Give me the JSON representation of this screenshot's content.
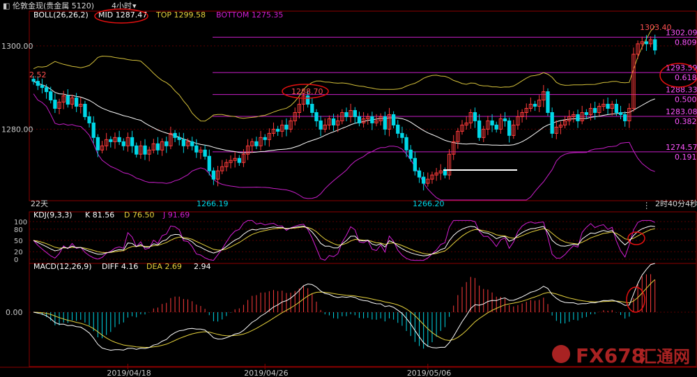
{
  "title_bar": {
    "title": "伦敦金现(贵金属 5120)",
    "period": "4小时",
    "chevron": "▾"
  },
  "colors": {
    "bg": "#000000",
    "frame": "#8b0000",
    "grid": "#5a0000",
    "price_label": "#c8c8c8",
    "up": "#ff3b3b",
    "down": "#00d8e8",
    "boll_mid": "#ffffff",
    "boll_top": "#d4c03a",
    "boll_bottom": "#c81ec8",
    "fib": "#c81ec8",
    "fib_label": "#ff55ff",
    "white_line": "#ffffff",
    "kdj_k": "#ffffff",
    "kdj_d": "#e6d23c",
    "kdj_j": "#d21ed2",
    "macd_diff": "#ffffff",
    "macd_dea": "#e6d23c",
    "circle": "#e81010",
    "watermark": "#c62828"
  },
  "indicators": {
    "boll": {
      "name": "BOLL(26,26,2)",
      "mid": "MID 1287.47",
      "top": "TOP 1299.58",
      "bottom": "BOTTOM 1275.35"
    },
    "kdj": {
      "name": "KDJ(9,3,3)",
      "k": "K 81.56",
      "d": "D 76.50",
      "j": "J 91.69"
    },
    "macd": {
      "name": "MACD(12,26,9)",
      "diff": "DIFF 4.16",
      "dea": "DEA 2.69",
      "macd": "2.94"
    }
  },
  "annotations": {
    "left_value": "2.52",
    "peak_left": "1288.70",
    "peak_right": "1303.40",
    "low_left": "1266.19",
    "low_right": "1266.20",
    "days": "22天",
    "countdown": "2时40分4秒"
  },
  "fib_levels": [
    {
      "price": 1302.09,
      "label": "1302.09",
      "ratio": "0.809"
    },
    {
      "price": 1293.59,
      "label": "1293.59",
      "ratio": "0.618"
    },
    {
      "price": 1288.33,
      "label": "1288.33",
      "ratio": "0.500"
    },
    {
      "price": 1283.08,
      "label": "1283.08",
      "ratio": "0.382"
    },
    {
      "price": 1274.57,
      "label": "1274.57",
      "ratio": "0.191"
    }
  ],
  "price_axis": {
    "ticks": [
      1300.0,
      1280.0
    ],
    "labels": [
      "1300.00",
      "1280.00"
    ]
  },
  "kdj_axis": {
    "ticks": [
      100,
      80,
      50,
      20,
      0
    ],
    "labels": [
      "100",
      "80",
      "50",
      "20",
      "0"
    ]
  },
  "macd_axis": {
    "ticks": [
      0
    ],
    "labels": [
      "0.00"
    ]
  },
  "x_axis": {
    "labels": [
      "2019/04/18",
      "2019/04/26",
      "2019/05/06"
    ],
    "label_index": [
      22,
      54,
      92
    ]
  },
  "watermark": {
    "text": "FX678",
    "cn": "汇通网"
  },
  "chart_data": {
    "type": "candlestick",
    "symbol": "伦敦金现",
    "interval": "4小时",
    "price_ylim": [
      1263,
      1306
    ],
    "closes": [
      1291.5,
      1290.5,
      1290,
      1289,
      1287,
      1285,
      1286.5,
      1288,
      1286,
      1287.5,
      1285.5,
      1286,
      1283,
      1281.5,
      1278,
      1275,
      1276,
      1277.5,
      1277,
      1278,
      1277,
      1276,
      1278,
      1276,
      1274,
      1276,
      1274,
      1275,
      1276.5,
      1275,
      1277,
      1276,
      1279,
      1278,
      1277.5,
      1276,
      1277,
      1276,
      1274.5,
      1275,
      1273.5,
      1270,
      1268,
      1270,
      1271,
      1272,
      1272.5,
      1273,
      1272,
      1274,
      1276,
      1277,
      1276,
      1278,
      1277.5,
      1279,
      1280,
      1279.5,
      1281,
      1280,
      1282,
      1284,
      1286,
      1288,
      1286,
      1284,
      1282,
      1280,
      1281,
      1282.5,
      1281,
      1282,
      1284,
      1283,
      1284.5,
      1283,
      1281.5,
      1282.5,
      1283,
      1281.5,
      1282,
      1283,
      1280,
      1283.5,
      1281,
      1279,
      1278,
      1275,
      1273,
      1270,
      1268.5,
      1267,
      1268,
      1269,
      1269.5,
      1270,
      1269,
      1274,
      1277,
      1279.5,
      1281,
      1281.5,
      1284,
      1282,
      1278,
      1280,
      1282,
      1281,
      1280,
      1282.5,
      1282,
      1278.5,
      1281,
      1283,
      1284,
      1285,
      1286,
      1285.5,
      1287,
      1289,
      1284,
      1279,
      1280.5,
      1281,
      1282,
      1283,
      1283.5,
      1282,
      1284,
      1283.5,
      1285,
      1284,
      1285.5,
      1286,
      1285,
      1286,
      1284,
      1283.5,
      1282,
      1285,
      1298,
      1300.5,
      1301,
      1300.5,
      1301.5,
      1299
    ],
    "opens": [
      1292,
      1291.5,
      1290.5,
      1290,
      1289,
      1287,
      1285,
      1286.5,
      1288,
      1286,
      1287.5,
      1285.5,
      1286,
      1283,
      1281.5,
      1278,
      1275,
      1276,
      1277.5,
      1277,
      1278,
      1277,
      1276,
      1278,
      1276,
      1274,
      1276,
      1274,
      1275,
      1276.5,
      1275,
      1277,
      1276,
      1279,
      1278,
      1277.5,
      1276,
      1277,
      1276,
      1274.5,
      1275,
      1273.5,
      1270,
      1268,
      1270,
      1271,
      1272,
      1272.5,
      1273,
      1272,
      1274,
      1276,
      1277,
      1276,
      1278,
      1277.5,
      1279,
      1280,
      1279.5,
      1281,
      1280,
      1282,
      1284,
      1286,
      1288,
      1286,
      1284,
      1282,
      1280,
      1281,
      1282.5,
      1281,
      1282,
      1284,
      1283,
      1284.5,
      1283,
      1281.5,
      1282.5,
      1283,
      1281.5,
      1282,
      1283,
      1280,
      1283.5,
      1281,
      1279,
      1278,
      1275,
      1273,
      1270,
      1268.5,
      1267,
      1268,
      1269,
      1269.5,
      1270,
      1269,
      1274,
      1277,
      1279.5,
      1281,
      1281.5,
      1284,
      1282,
      1278,
      1280,
      1282,
      1281,
      1280,
      1282.5,
      1282,
      1278.5,
      1281,
      1283,
      1284,
      1285,
      1286,
      1285.5,
      1287,
      1289,
      1284,
      1279,
      1280.5,
      1281,
      1282,
      1283,
      1283.5,
      1282,
      1284,
      1283.5,
      1285,
      1284,
      1285.5,
      1286,
      1285,
      1286,
      1284,
      1283.5,
      1282,
      1285,
      1298,
      1300.5,
      1301,
      1300.5,
      1301.5
    ],
    "boll_ylabel": "price"
  }
}
